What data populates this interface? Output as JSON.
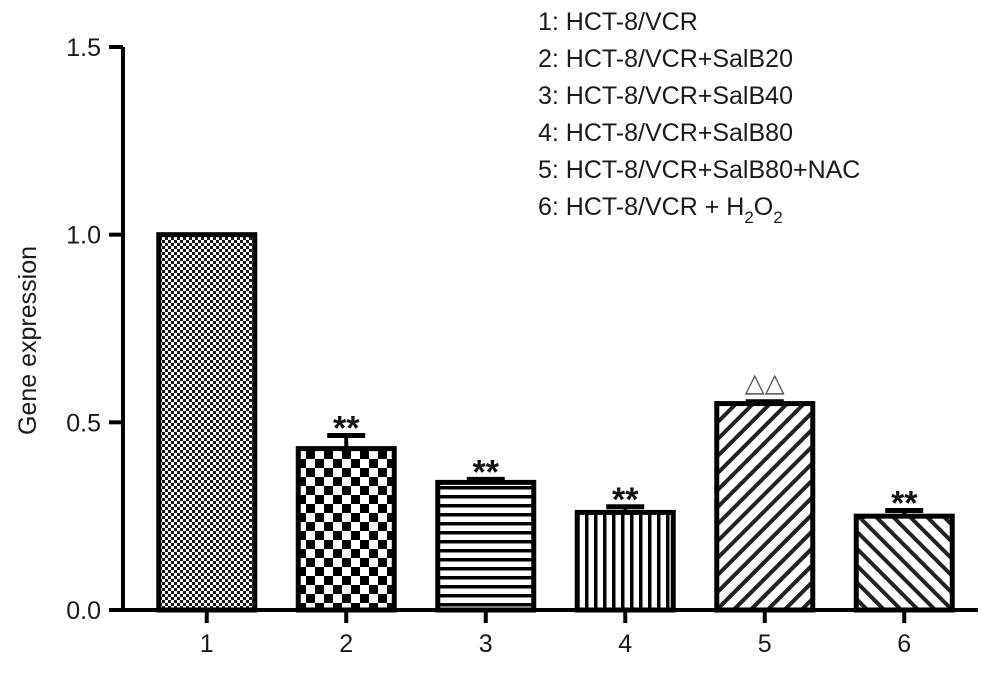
{
  "chart_data": {
    "type": "bar",
    "categories": [
      "1",
      "2",
      "3",
      "4",
      "5",
      "6"
    ],
    "values": [
      1.0,
      0.43,
      0.34,
      0.26,
      0.55,
      0.25
    ],
    "errors": [
      0,
      0.035,
      0.008,
      0.015,
      0.005,
      0.015
    ],
    "annotations": [
      "",
      "**",
      "**",
      "**",
      "△△",
      "**"
    ],
    "ylabel": "Gene expression",
    "xlabel": "",
    "ylim": [
      0,
      1.5
    ],
    "yticks": [
      "0.0",
      "0.5",
      "1.0",
      "1.5"
    ],
    "grid": false,
    "legend_position": "top-right",
    "legend": [
      {
        "text": "1: HCT-8/VCR"
      },
      {
        "text": "2: HCT-8/VCR+SalB20"
      },
      {
        "text": "3: HCT-8/VCR+SalB40"
      },
      {
        "text": "4: HCT-8/VCR+SalB80"
      },
      {
        "text": "5: HCT-8/VCR+SalB80+NAC"
      },
      {
        "text": "6: HCT-8/VCR + H",
        "sub1": "2",
        "mid": "O",
        "sub2": "2"
      }
    ],
    "fills": [
      "dots-fine",
      "checker",
      "horizontal-lines",
      "vertical-lines",
      "diagonal-right",
      "diagonal-left"
    ],
    "colors": {
      "bar_stroke": "#000000",
      "axis": "#000000",
      "pattern": "#1a1a1a",
      "annot_triangle": "#555555"
    }
  }
}
